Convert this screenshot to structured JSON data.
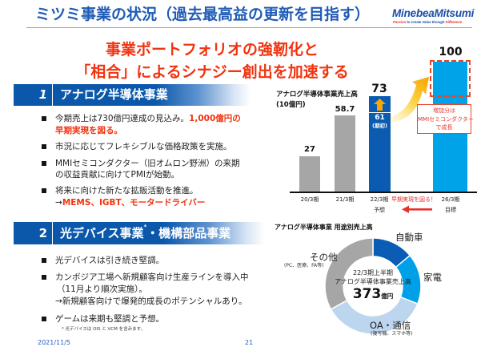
{
  "colors": {
    "title_blue": "#1f5bb5",
    "accent_red": "#f2330f",
    "section_blue": "#0b58ab",
    "bar_gray": "#a6a6a6",
    "bar_blue": "#0b5cb0",
    "bar_cyan": "#00a2e8",
    "arrow_orange": "#f6a800"
  },
  "header": {
    "title": "ミツミ事業の状況（過去最高益の更新を目指す）",
    "logo": "MinebeaMitsumi",
    "tagline_start": "Passion",
    "tagline_middle": " to Create Value through ",
    "tagline_end": "Difference"
  },
  "headline": {
    "line1": "事業ポートフォリオの強靭化と",
    "line2": "「相合」によるシナジー創出を加速する"
  },
  "sections": [
    {
      "number": "1",
      "title": "アナログ半導体事業",
      "bullets": [
        {
          "lines": [
            {
              "text": "今期売上は730億円達成の見込み。",
              "highlight": "1,000億円の"
            },
            {
              "text": "",
              "highlight": "早期実現を図る。"
            }
          ]
        },
        {
          "lines": [
            {
              "text": "市況に応じてフレキシブルな価格政策を実施。"
            }
          ]
        },
        {
          "lines": [
            {
              "text": "MMIセミコンダクター（旧オムロン野洲）の来期"
            },
            {
              "text": "の収益貢献に向けてPMIが始動。"
            }
          ]
        },
        {
          "lines": [
            {
              "text": "将来に向けた新たな拡販活動を推進。"
            },
            {
              "text": "→",
              "highlight": "MEMS、IGBT、モータードライバー"
            }
          ]
        }
      ]
    },
    {
      "number": "2",
      "title": "光デバイス事業",
      "title_mark": "*",
      "title_suffix": "・機構部品事業",
      "bullets": [
        {
          "lines": [
            {
              "text": "光デバイスは引き続き堅調。"
            }
          ]
        },
        {
          "lines": [
            {
              "text": "カンボジア工場へ新規顧客向け生産ラインを導入中"
            },
            {
              "text": "（11月より順次実施）。"
            },
            {
              "text": "→新規顧客向けで爆発的成長のポテンシャルあり。"
            }
          ]
        },
        {
          "lines": [
            {
              "text": "ゲームは来期も堅調と予想。"
            }
          ]
        }
      ]
    }
  ],
  "footnote": "* 光デバイスは OIS と VCM を含みます。",
  "footer": {
    "date": "2021/11/5",
    "page": "21"
  },
  "chart_data": [
    {
      "type": "bar",
      "title": "アナログ半導体事業売上高",
      "ylabel": "(10億円)",
      "xlabel": "",
      "categories": [
        "20/3期",
        "21/3期",
        "22/3期",
        "26/3期"
      ],
      "category_sublabels": [
        "",
        "",
        "予想",
        "目標"
      ],
      "values": [
        27,
        58.7,
        73,
        100
      ],
      "value_labels": [
        "27",
        "58.7",
        "73",
        "100"
      ],
      "bar_colors": [
        "#a6a6a6",
        "#a6a6a6",
        "#0b5cb0",
        "#00a2e8"
      ],
      "initial_forecast": {
        "category": "22/3期",
        "value": 61,
        "label": "61",
        "sublabel": "(期初)"
      },
      "annotations": {
        "callout": [
          "増加分は",
          "MMIセミコンダクター",
          "で成長"
        ],
        "arrow_label": "早期実現を図る！"
      },
      "ylim": [
        0,
        100
      ],
      "grid": false,
      "legend": "none"
    },
    {
      "type": "pie",
      "variant": "donut",
      "title": "アナログ半導体事業 用途別売上高",
      "center": {
        "line1": "22/3期上半期",
        "line2": "アナログ半導体事業売上高",
        "value": "373",
        "unit": "億円"
      },
      "categories": [
        "自動車",
        "家電",
        "OA・通信",
        "その他"
      ],
      "category_notes": [
        "",
        "",
        "(複写機、スマホ等)",
        "(PC、医療、FA等)"
      ],
      "values": [
        14,
        17,
        36,
        33
      ],
      "colors": [
        "#0b5cb4",
        "#00a0e9",
        "#bcd6ef",
        "#a6a6a6"
      ],
      "legend": "direct labels"
    }
  ]
}
